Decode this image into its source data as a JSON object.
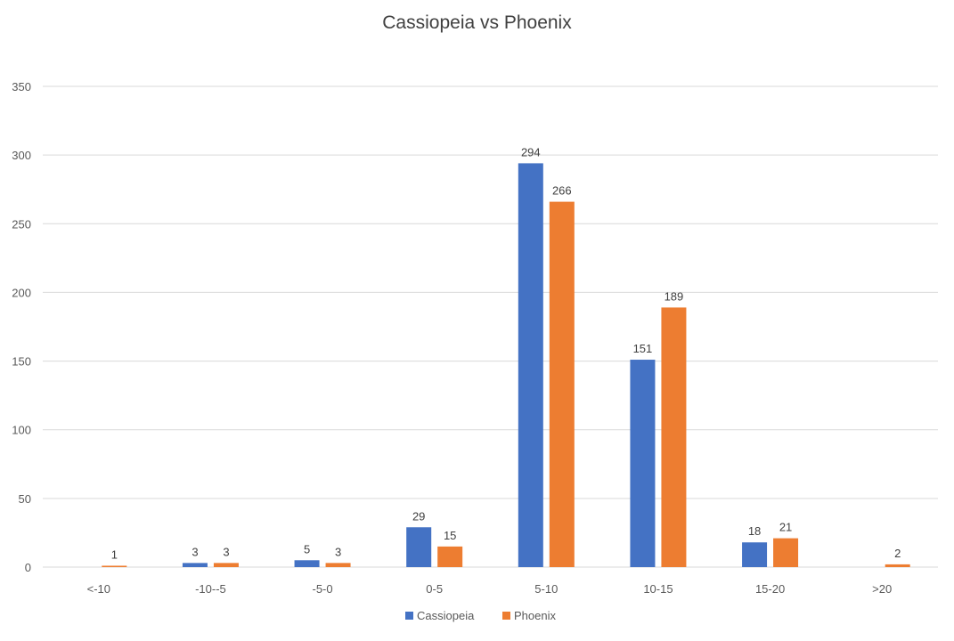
{
  "chart_data": {
    "type": "bar",
    "title": "Cassiopeia vs Phoenix",
    "xlabel": "",
    "ylabel": "",
    "categories": [
      "<-10",
      "-10--5",
      "-5-0",
      "0-5",
      "5-10",
      "10-15",
      "15-20",
      ">20"
    ],
    "series": [
      {
        "name": "Cassiopeia",
        "color": "#4472C4",
        "values": [
          0,
          3,
          5,
          29,
          294,
          151,
          18,
          0
        ],
        "labels": [
          "",
          "3",
          "5",
          "29",
          "294",
          "151",
          "18",
          ""
        ]
      },
      {
        "name": "Phoenix",
        "color": "#ED7D31",
        "values": [
          1,
          3,
          3,
          15,
          266,
          189,
          21,
          2
        ],
        "labels": [
          "1",
          "3",
          "3",
          "15",
          "266",
          "189",
          "21",
          "2"
        ]
      }
    ],
    "yticks": [
      "0",
      "50",
      "100",
      "150",
      "200",
      "250",
      "300",
      "350"
    ],
    "ylim": [
      0,
      350
    ],
    "grid": true,
    "legend_position": "bottom",
    "gridline_color": "#d9d9d9"
  }
}
